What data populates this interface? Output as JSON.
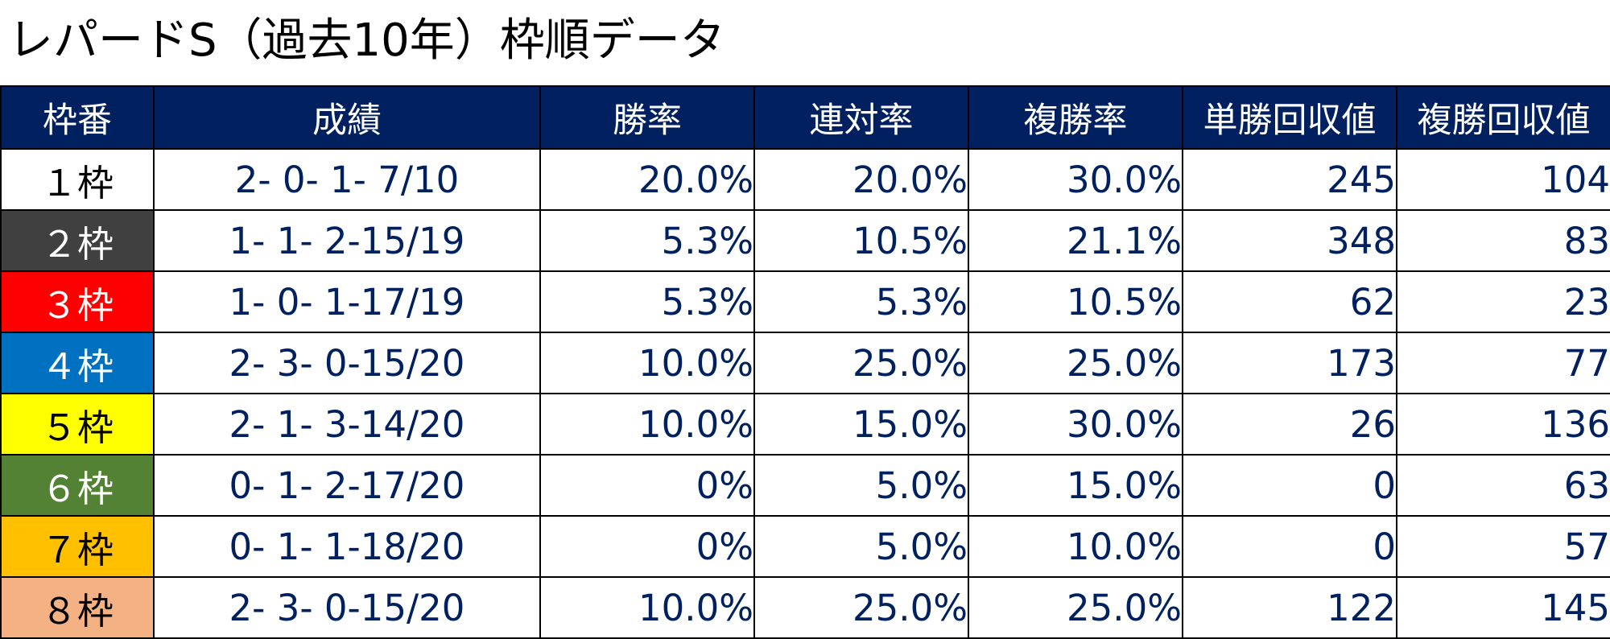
{
  "title": "レパードS（過去10年）枠順データ",
  "table": {
    "headers": [
      "枠番",
      "成績",
      "勝率",
      "連対率",
      "複勝率",
      "単勝回収値",
      "複勝回収値"
    ],
    "rows": [
      {
        "frame": "１枠",
        "record": "2- 0- 1- 7/10",
        "win_rate": "20.0%",
        "place_rate": "20.0%",
        "show_rate": "30.0%",
        "win_return": "245",
        "show_return": "104",
        "bg": "#ffffff",
        "fg": "#000000"
      },
      {
        "frame": "２枠",
        "record": "1- 1- 2-15/19",
        "win_rate": "5.3%",
        "place_rate": "10.5%",
        "show_rate": "21.1%",
        "win_return": "348",
        "show_return": "83",
        "bg": "#404040",
        "fg": "#ffffff"
      },
      {
        "frame": "３枠",
        "record": "1- 0- 1-17/19",
        "win_rate": "5.3%",
        "place_rate": "5.3%",
        "show_rate": "10.5%",
        "win_return": "62",
        "show_return": "23",
        "bg": "#ff0000",
        "fg": "#ffffff"
      },
      {
        "frame": "４枠",
        "record": "2- 3- 0-15/20",
        "win_rate": "10.0%",
        "place_rate": "25.0%",
        "show_rate": "25.0%",
        "win_return": "173",
        "show_return": "77",
        "bg": "#0070c0",
        "fg": "#ffffff"
      },
      {
        "frame": "５枠",
        "record": "2- 1- 3-14/20",
        "win_rate": "10.0%",
        "place_rate": "15.0%",
        "show_rate": "30.0%",
        "win_return": "26",
        "show_return": "136",
        "bg": "#ffff00",
        "fg": "#000000"
      },
      {
        "frame": "６枠",
        "record": "0- 1- 2-17/20",
        "win_rate": "0%",
        "place_rate": "5.0%",
        "show_rate": "15.0%",
        "win_return": "0",
        "show_return": "63",
        "bg": "#548235",
        "fg": "#ffffff"
      },
      {
        "frame": "７枠",
        "record": "0- 1- 1-18/20",
        "win_rate": "0%",
        "place_rate": "5.0%",
        "show_rate": "10.0%",
        "win_return": "0",
        "show_return": "57",
        "bg": "#ffc000",
        "fg": "#000000"
      },
      {
        "frame": "８枠",
        "record": "2- 3- 0-15/20",
        "win_rate": "10.0%",
        "place_rate": "25.0%",
        "show_rate": "25.0%",
        "win_return": "122",
        "show_return": "145",
        "bg": "#f4b183",
        "fg": "#000000"
      }
    ]
  },
  "colors": {
    "header_bg": "#002060",
    "header_text": "#ffffff",
    "data_text": "#002060",
    "border": "#000000"
  }
}
